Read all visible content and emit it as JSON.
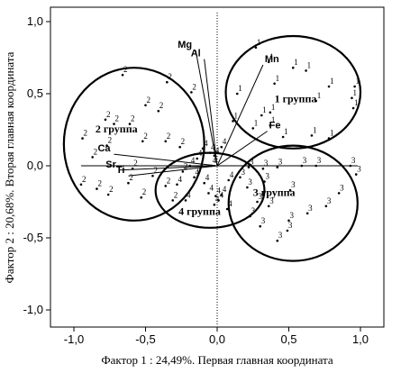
{
  "chart_data": {
    "type": "scatter",
    "xlabel": "Фактор 1 : 24,49%. Первая главная координата",
    "ylabel": "Фактор 2 : 20,68%. Вторая главная координата",
    "xlim": [
      -1.1,
      1.1
    ],
    "ylim": [
      -1.1,
      1.1
    ],
    "x_ticks": [
      "-1,0",
      "-0,5",
      "0,0",
      "0,5",
      "1,0"
    ],
    "y_ticks": [
      "1,0",
      "0,5",
      "0,0",
      "-0,5",
      "-1,0"
    ],
    "grid": false,
    "loading_vectors": [
      {
        "name": "Mg",
        "x": -0.15,
        "y": 0.8
      },
      {
        "name": "Al",
        "x": -0.09,
        "y": 0.74
      },
      {
        "name": "Mn",
        "x": 0.32,
        "y": 0.7
      },
      {
        "name": "Fe",
        "x": 0.35,
        "y": 0.24
      },
      {
        "name": "Ca",
        "x": -0.72,
        "y": 0.08
      },
      {
        "name": "Sr",
        "x": -0.68,
        "y": -0.03
      },
      {
        "name": "Ti",
        "x": -0.62,
        "y": -0.07
      }
    ],
    "groups": [
      {
        "name": "1 группа",
        "label_x": 0.4,
        "label_y": 0.44,
        "ellipse": {
          "cx": 0.53,
          "cy": 0.51,
          "rx": 0.47,
          "ry": 0.39
        }
      },
      {
        "name": "2 группа",
        "label_x": -0.85,
        "label_y": 0.23,
        "ellipse": {
          "cx": -0.58,
          "cy": 0.15,
          "rx": 0.49,
          "ry": 0.53
        }
      },
      {
        "name": "3 группа",
        "label_x": 0.25,
        "label_y": -0.21,
        "ellipse": {
          "cx": 0.53,
          "cy": -0.26,
          "rx": 0.45,
          "ry": 0.4
        }
      },
      {
        "name": "4 группа",
        "label_x": -0.27,
        "label_y": -0.34,
        "ellipse": {
          "cx": -0.05,
          "cy": -0.17,
          "rx": 0.38,
          "ry": 0.26
        }
      }
    ],
    "points": [
      {
        "g": "1",
        "x": 0.27,
        "y": 0.82
      },
      {
        "g": "1",
        "x": 0.36,
        "y": 0.72
      },
      {
        "g": "1",
        "x": 0.4,
        "y": 0.57
      },
      {
        "g": "1",
        "x": 0.53,
        "y": 0.68
      },
      {
        "g": "1",
        "x": 0.62,
        "y": 0.66
      },
      {
        "g": "1",
        "x": 0.69,
        "y": 0.45
      },
      {
        "g": "1",
        "x": 0.78,
        "y": 0.55
      },
      {
        "g": "1",
        "x": 0.96,
        "y": 0.55
      },
      {
        "g": "1",
        "x": 0.94,
        "y": 0.47
      },
      {
        "g": "1",
        "x": 0.95,
        "y": 0.4
      },
      {
        "g": "1",
        "x": 0.37,
        "y": 0.37
      },
      {
        "g": "1",
        "x": 0.31,
        "y": 0.35
      },
      {
        "g": "1",
        "x": 0.37,
        "y": 0.28
      },
      {
        "g": "1",
        "x": 0.46,
        "y": 0.2
      },
      {
        "g": "1",
        "x": 0.66,
        "y": 0.21
      },
      {
        "g": "1",
        "x": 0.78,
        "y": 0.19
      },
      {
        "g": "1",
        "x": 0.14,
        "y": 0.5
      },
      {
        "g": "1",
        "x": 0.11,
        "y": 0.31
      },
      {
        "g": "1",
        "x": 0.25,
        "y": 0.26
      },
      {
        "g": "2",
        "x": -0.66,
        "y": 0.63
      },
      {
        "g": "2",
        "x": -0.35,
        "y": 0.58
      },
      {
        "g": "2",
        "x": -0.18,
        "y": 0.51
      },
      {
        "g": "2",
        "x": -0.5,
        "y": 0.42
      },
      {
        "g": "2",
        "x": -0.41,
        "y": 0.38
      },
      {
        "g": "2",
        "x": -0.78,
        "y": 0.32
      },
      {
        "g": "2",
        "x": -0.72,
        "y": 0.29
      },
      {
        "g": "2",
        "x": -0.61,
        "y": 0.29
      },
      {
        "g": "2",
        "x": -0.94,
        "y": 0.19
      },
      {
        "g": "2",
        "x": -0.52,
        "y": 0.17
      },
      {
        "g": "2",
        "x": -0.77,
        "y": 0.14
      },
      {
        "g": "2",
        "x": -0.87,
        "y": 0.06
      },
      {
        "g": "2",
        "x": -0.59,
        "y": -0.02
      },
      {
        "g": "2",
        "x": -0.45,
        "y": -0.07
      },
      {
        "g": "2",
        "x": -0.62,
        "y": -0.12
      },
      {
        "g": "2",
        "x": -0.95,
        "y": -0.13
      },
      {
        "g": "2",
        "x": -0.84,
        "y": -0.16
      },
      {
        "g": "2",
        "x": -0.76,
        "y": -0.2
      },
      {
        "g": "2",
        "x": -0.53,
        "y": -0.22
      },
      {
        "g": "2",
        "x": -0.36,
        "y": -0.14
      },
      {
        "g": "2",
        "x": -0.31,
        "y": -0.24
      },
      {
        "g": "2",
        "x": -0.24,
        "y": -0.04
      },
      {
        "g": "2",
        "x": -0.36,
        "y": 0.17
      },
      {
        "g": "2",
        "x": -0.26,
        "y": 0.13
      },
      {
        "g": "3",
        "x": 0.22,
        "y": -0.01
      },
      {
        "g": "3",
        "x": 0.32,
        "y": -0.02
      },
      {
        "g": "3",
        "x": 0.42,
        "y": -0.01
      },
      {
        "g": "3",
        "x": 0.59,
        "y": 0.0
      },
      {
        "g": "3",
        "x": 0.69,
        "y": 0.0
      },
      {
        "g": "3",
        "x": 0.93,
        "y": 0.0
      },
      {
        "g": "3",
        "x": 0.97,
        "y": -0.06
      },
      {
        "g": "3",
        "x": 0.16,
        "y": -0.08
      },
      {
        "g": "3",
        "x": 0.21,
        "y": -0.15
      },
      {
        "g": "3",
        "x": 0.33,
        "y": -0.11
      },
      {
        "g": "3",
        "x": 0.36,
        "y": -0.28
      },
      {
        "g": "3",
        "x": 0.51,
        "y": -0.17
      },
      {
        "g": "3",
        "x": 0.28,
        "y": -0.25
      },
      {
        "g": "3",
        "x": 0.23,
        "y": -0.35
      },
      {
        "g": "3",
        "x": 0.3,
        "y": -0.42
      },
      {
        "g": "3",
        "x": 0.5,
        "y": -0.38
      },
      {
        "g": "3",
        "x": 0.42,
        "y": -0.52
      },
      {
        "g": "3",
        "x": 0.49,
        "y": -0.45
      },
      {
        "g": "3",
        "x": 0.63,
        "y": -0.33
      },
      {
        "g": "3",
        "x": 0.76,
        "y": -0.28
      },
      {
        "g": "3",
        "x": 0.85,
        "y": -0.19
      },
      {
        "g": "4",
        "x": -0.1,
        "y": 0.12
      },
      {
        "g": "4",
        "x": -0.05,
        "y": 0.09
      },
      {
        "g": "4",
        "x": -0.02,
        "y": 0.07
      },
      {
        "g": "4",
        "x": 0.03,
        "y": 0.13
      },
      {
        "g": "4",
        "x": -0.14,
        "y": 0.05
      },
      {
        "g": "4",
        "x": -0.04,
        "y": 0.0
      },
      {
        "g": "4",
        "x": -0.19,
        "y": 0.0
      },
      {
        "g": "4",
        "x": -0.16,
        "y": -0.08
      },
      {
        "g": "4",
        "x": -0.09,
        "y": -0.12
      },
      {
        "g": "4",
        "x": -0.06,
        "y": -0.19
      },
      {
        "g": "4",
        "x": -0.01,
        "y": -0.21
      },
      {
        "g": "4",
        "x": 0.01,
        "y": -0.24
      },
      {
        "g": "4",
        "x": -0.02,
        "y": -0.27
      },
      {
        "g": "4",
        "x": 0.08,
        "y": -0.1
      },
      {
        "g": "4",
        "x": 0.03,
        "y": -0.2
      },
      {
        "g": "4",
        "x": -0.22,
        "y": -0.24
      },
      {
        "g": "4",
        "x": -0.28,
        "y": -0.13
      },
      {
        "g": "4",
        "x": 0.07,
        "y": -0.3
      }
    ]
  }
}
